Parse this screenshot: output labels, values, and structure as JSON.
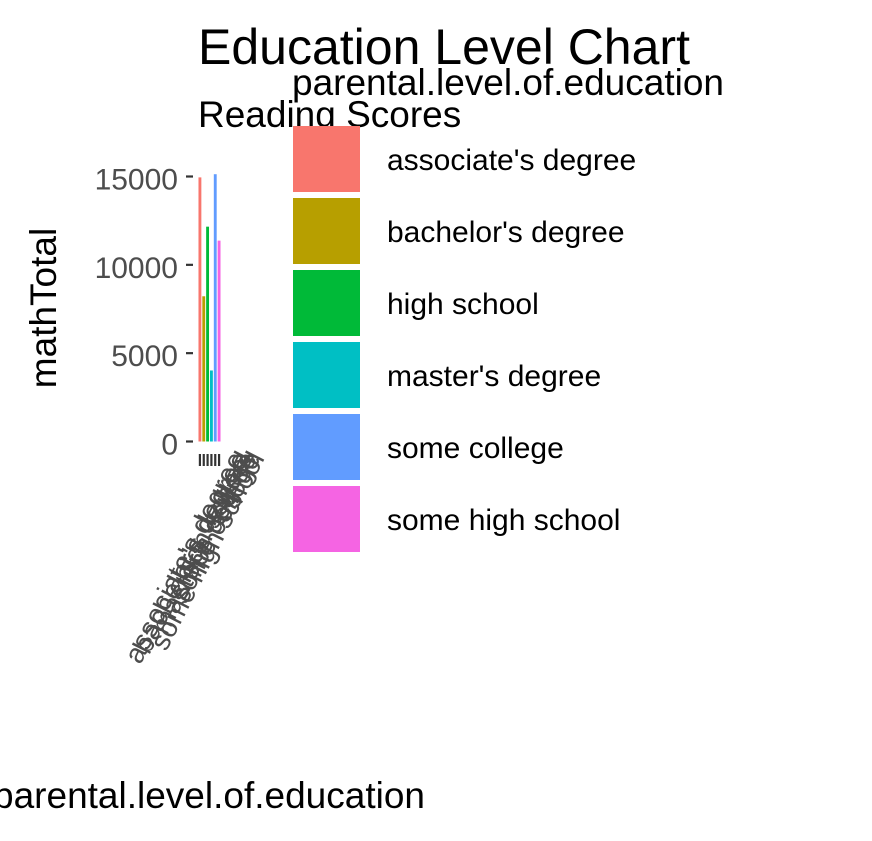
{
  "chart_data": {
    "type": "bar",
    "title": "Education Level Chart",
    "subtitle": "Reading Scores",
    "xlabel": "parental.level.of.education",
    "ylabel": "mathTotal",
    "ylim": [
      0,
      15200
    ],
    "yticks": [
      0,
      5000,
      10000,
      15000
    ],
    "grid": false,
    "legend": {
      "title": "parental.level.of.education",
      "position": "right"
    },
    "categories": [
      "associate's degree",
      "bachelor's degree",
      "high school",
      "master's degree",
      "some college",
      "some high school"
    ],
    "values": [
      14950,
      8220,
      12160,
      4020,
      15130,
      11370
    ],
    "colors": [
      "#F8766D",
      "#B79F00",
      "#00BA38",
      "#00BFC4",
      "#619CFF",
      "#F564E3"
    ]
  }
}
